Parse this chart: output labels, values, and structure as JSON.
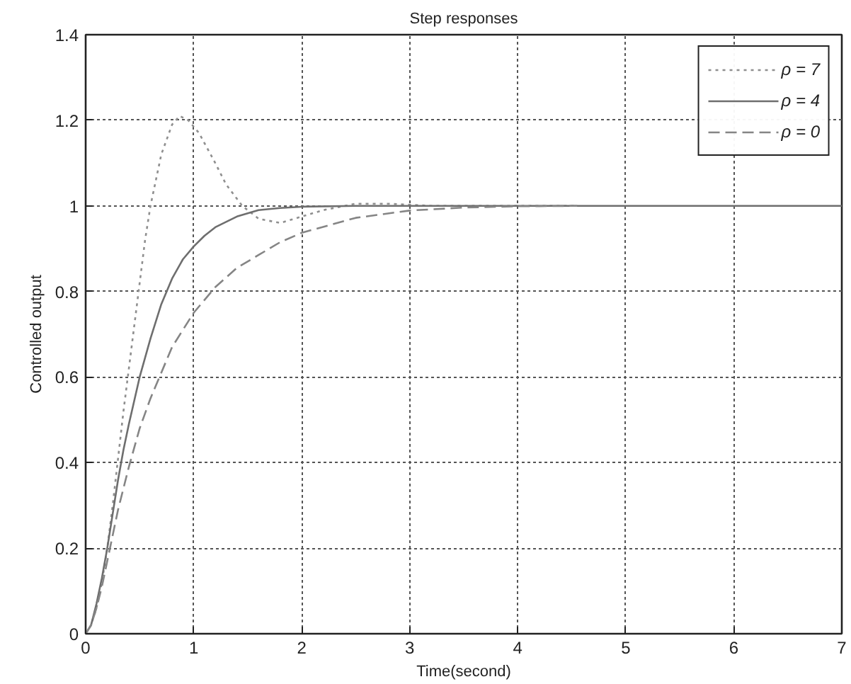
{
  "chart_data": {
    "type": "line",
    "title": "Step responses",
    "xlabel": "Time(second)",
    "ylabel": "Controlled output",
    "xlim": [
      0,
      7
    ],
    "ylim": [
      0,
      1.4
    ],
    "xticks": [
      0,
      1,
      2,
      3,
      4,
      5,
      6,
      7
    ],
    "yticks": [
      0,
      0.2,
      0.4,
      0.6,
      0.8,
      1,
      1.2,
      1.4
    ],
    "grid": true,
    "legend": "top right",
    "series": [
      {
        "name": "ρ = 7",
        "color": "#8f8f8f",
        "line_style": "dotted",
        "x": [
          0,
          0.05,
          0.1,
          0.15,
          0.2,
          0.25,
          0.3,
          0.35,
          0.4,
          0.45,
          0.5,
          0.55,
          0.6,
          0.7,
          0.8,
          0.87,
          0.95,
          1.05,
          1.2,
          1.3,
          1.45,
          1.6,
          1.8,
          2.0,
          2.2,
          2.5,
          2.8,
          3.2,
          4.55
        ],
        "values": [
          0,
          0.02,
          0.06,
          0.12,
          0.2,
          0.3,
          0.41,
          0.52,
          0.62,
          0.72,
          0.82,
          0.92,
          1.0,
          1.12,
          1.19,
          1.21,
          1.2,
          1.17,
          1.1,
          1.05,
          1.0,
          0.97,
          0.96,
          0.975,
          0.99,
          1.005,
          1.005,
          1.0,
          1.0
        ]
      },
      {
        "name": "ρ = 4",
        "color": "#6e6e6e",
        "line_style": "solid",
        "x": [
          0,
          0.05,
          0.1,
          0.15,
          0.2,
          0.25,
          0.3,
          0.35,
          0.4,
          0.5,
          0.6,
          0.7,
          0.8,
          0.9,
          1.0,
          1.1,
          1.2,
          1.4,
          1.6,
          1.8,
          2.0,
          2.5,
          7
        ],
        "values": [
          0,
          0.02,
          0.07,
          0.13,
          0.2,
          0.28,
          0.36,
          0.43,
          0.49,
          0.6,
          0.69,
          0.77,
          0.83,
          0.875,
          0.905,
          0.93,
          0.95,
          0.975,
          0.99,
          0.995,
          0.998,
          1.0,
          1.0
        ]
      },
      {
        "name": "ρ = 0",
        "color": "#858585",
        "line_style": "dashed",
        "x": [
          0,
          0.05,
          0.1,
          0.15,
          0.2,
          0.25,
          0.3,
          0.4,
          0.5,
          0.6,
          0.7,
          0.8,
          0.9,
          1.0,
          1.2,
          1.4,
          1.6,
          1.8,
          2.0,
          2.5,
          3.0,
          3.5,
          4.0,
          4.55
        ],
        "values": [
          0,
          0.02,
          0.06,
          0.11,
          0.17,
          0.23,
          0.29,
          0.39,
          0.48,
          0.55,
          0.61,
          0.67,
          0.71,
          0.75,
          0.81,
          0.855,
          0.885,
          0.915,
          0.937,
          0.972,
          0.989,
          0.996,
          0.999,
          1.0
        ]
      }
    ]
  }
}
